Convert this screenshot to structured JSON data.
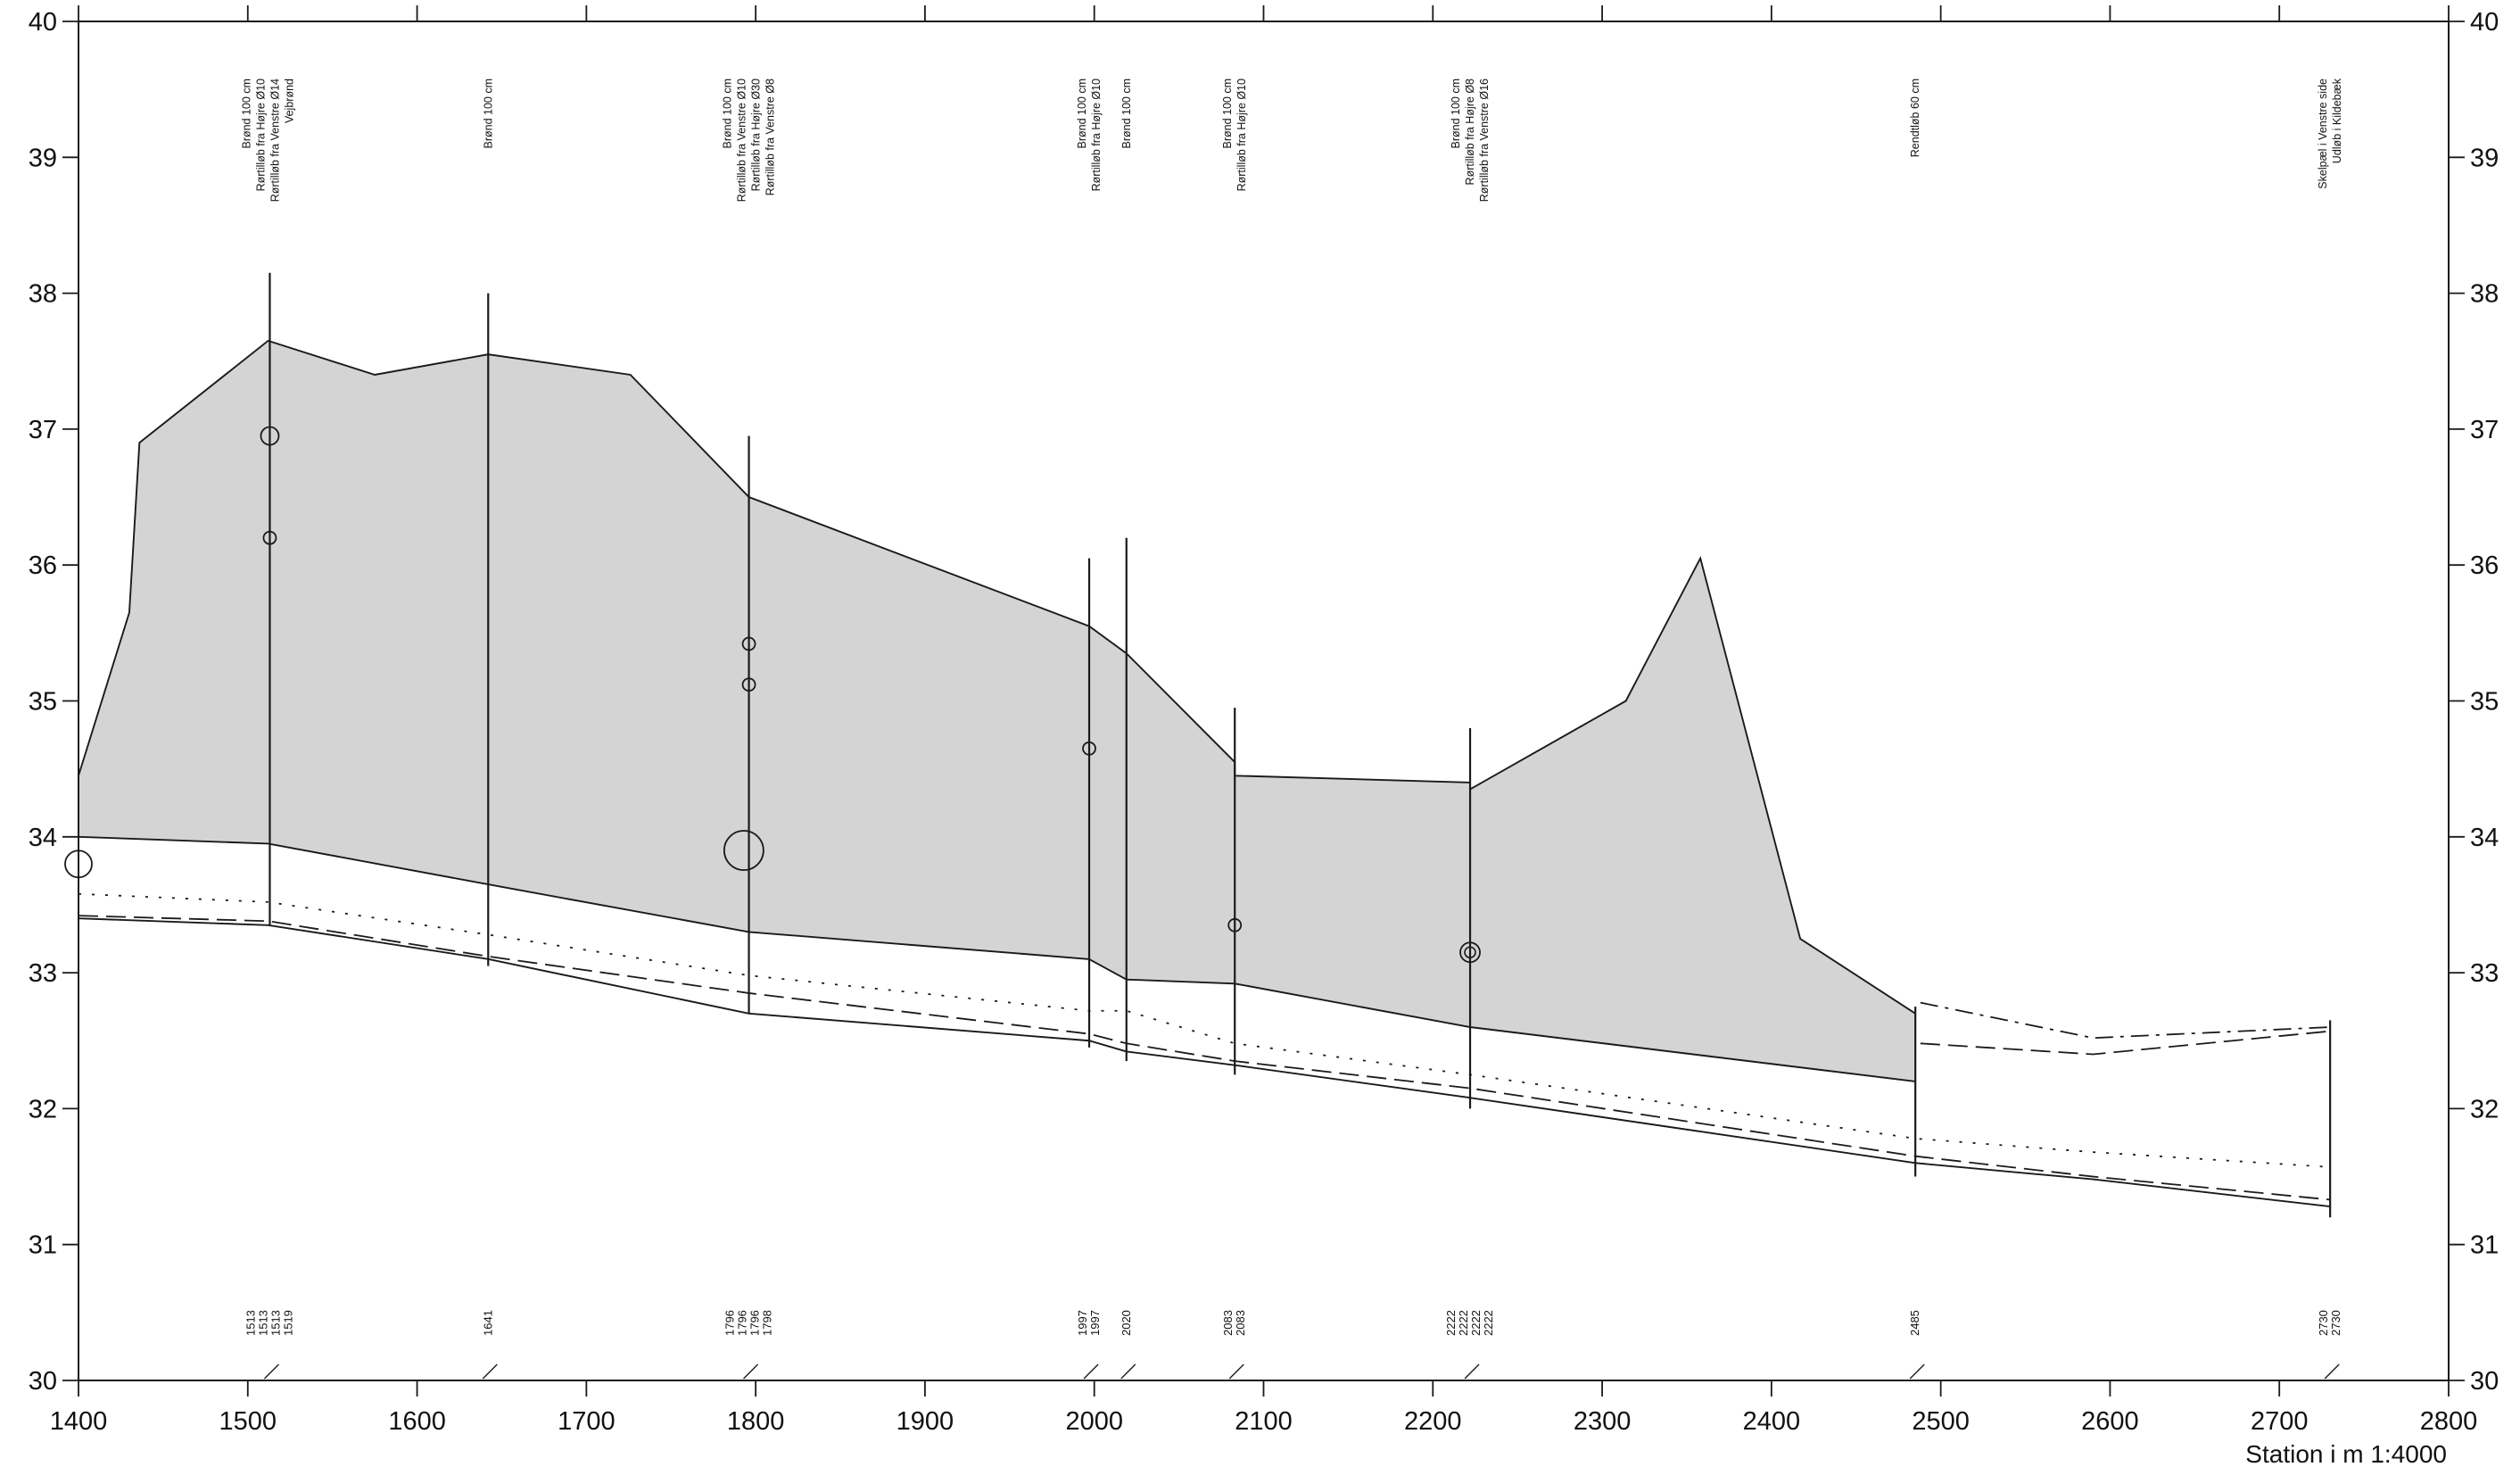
{
  "chart_data": {
    "type": "area",
    "xlabel": "Station i m  1:4000",
    "ylabel": "",
    "xlim": [
      1400,
      2800
    ],
    "ylim": [
      30,
      40
    ],
    "x_ticks": [
      1400,
      1500,
      1600,
      1700,
      1800,
      1900,
      2000,
      2100,
      2200,
      2300,
      2400,
      2500,
      2600,
      2700,
      2800
    ],
    "y_ticks": [
      30,
      31,
      32,
      33,
      34,
      35,
      36,
      37,
      38,
      39,
      40
    ],
    "x_tick_labels": [
      "1400",
      "1500",
      "1600",
      "1700",
      "1800",
      "1900",
      "2000",
      "2100",
      "2200",
      "2300",
      "2400",
      "2500",
      "2600",
      "2700",
      "2800"
    ],
    "y_tick_labels": [
      "30",
      "31",
      "32",
      "33",
      "34",
      "35",
      "36",
      "37",
      "38",
      "39",
      "40"
    ],
    "grid": false,
    "colors": {
      "fill": "#d4d4d4",
      "line": "#1a1a1a"
    },
    "series": [
      {
        "style": "solid",
        "x": [
          1400,
          1430,
          1436,
          1512,
          1575,
          1642,
          1726,
          1796,
          1997,
          2019,
          2083,
          2083,
          2222,
          2222,
          2314,
          2358,
          2417,
          2485
        ],
        "y": [
          34.45,
          35.65,
          36.9,
          37.65,
          37.4,
          37.55,
          37.4,
          36.5,
          35.55,
          35.35,
          34.55,
          34.45,
          34.4,
          34.35,
          35.0,
          36.05,
          33.25,
          32.7
        ]
      },
      {
        "style": "solid",
        "x": [
          1400,
          1512,
          1642,
          1796,
          1997,
          2019,
          2083,
          2222,
          2485
        ],
        "y": [
          34.0,
          33.95,
          33.65,
          33.3,
          33.1,
          32.95,
          32.92,
          32.6,
          32.2
        ]
      },
      {
        "style": "dotted",
        "x": [
          1400,
          1512,
          1642,
          1796,
          1997,
          2019,
          2083,
          2222,
          2485,
          2590,
          2730
        ],
        "y": [
          33.58,
          33.52,
          33.28,
          32.98,
          32.72,
          32.72,
          32.48,
          32.25,
          31.78,
          31.68,
          31.57
        ]
      },
      {
        "style": "dashed",
        "x": [
          1400,
          1512,
          1642,
          1796,
          1997,
          2019,
          2083,
          2222,
          2485,
          2590,
          2730
        ],
        "y": [
          33.42,
          33.38,
          33.12,
          32.85,
          32.55,
          32.48,
          32.35,
          32.15,
          31.65,
          31.5,
          31.33
        ]
      },
      {
        "style": "solid",
        "x": [
          1400,
          1512,
          1642,
          1796,
          1997,
          2019,
          2083,
          2222,
          2485,
          2590,
          2730
        ],
        "y": [
          33.4,
          33.35,
          33.1,
          32.7,
          32.5,
          32.42,
          32.32,
          32.08,
          31.6,
          31.48,
          31.28
        ]
      },
      {
        "style": "dashdot",
        "x": [
          2488,
          2590,
          2730
        ],
        "y": [
          32.78,
          32.52,
          32.6
        ]
      },
      {
        "style": "dashed",
        "x": [
          2488,
          2590,
          2730
        ],
        "y": [
          32.48,
          32.4,
          32.57
        ]
      }
    ],
    "wells": [
      {
        "x": 1513,
        "top": 38.15,
        "bottom": 33.35
      },
      {
        "x": 1642,
        "top": 38.0,
        "bottom": 33.05
      },
      {
        "x": 1796,
        "top": 36.95,
        "bottom": 32.7
      },
      {
        "x": 1997,
        "top": 36.05,
        "bottom": 32.45
      },
      {
        "x": 2019,
        "top": 36.2,
        "bottom": 32.35
      },
      {
        "x": 2083,
        "top": 34.95,
        "bottom": 32.25
      },
      {
        "x": 2222,
        "top": 34.8,
        "bottom": 32.0
      },
      {
        "x": 2485,
        "top": 32.75,
        "bottom": 31.5
      },
      {
        "x": 2730,
        "top": 32.65,
        "bottom": 31.2
      }
    ],
    "pipe_markers": [
      {
        "x": 1513,
        "y": 36.95,
        "size": "small"
      },
      {
        "x": 1513,
        "y": 36.2,
        "size": "tiny"
      },
      {
        "x": 1796,
        "y": 35.42,
        "size": "tiny"
      },
      {
        "x": 1796,
        "y": 35.12,
        "size": "tiny"
      },
      {
        "x": 1793,
        "y": 33.9,
        "size": "large"
      },
      {
        "x": 1997,
        "y": 34.65,
        "size": "tiny"
      },
      {
        "x": 2083,
        "y": 33.35,
        "size": "tiny"
      },
      {
        "x": 2222,
        "y": 33.15,
        "size": "double"
      },
      {
        "x": 1400,
        "y": 33.8,
        "size": "edge"
      }
    ],
    "annotations": [
      {
        "x": 1512,
        "lines": [
          "Brønd 100 cm",
          "Rørtilløb fra Højre Ø10",
          "Rørtilløb fra Venstre Ø14",
          "Vejbrønd"
        ]
      },
      {
        "x": 1642,
        "lines": [
          "Brønd 100 cm"
        ]
      },
      {
        "x": 1796,
        "lines": [
          "Brønd 100 cm",
          "Rørtilløb fra Venstre Ø10",
          "Rørtilløb fra Højre Ø30",
          "Rørtilløb fra Venstre Ø8"
        ]
      },
      {
        "x": 1997,
        "lines": [
          "Brønd 100 cm",
          "Rørtilløb fra Højre Ø10"
        ]
      },
      {
        "x": 2019,
        "lines": [
          "Brønd 100 cm"
        ]
      },
      {
        "x": 2083,
        "lines": [
          "Brønd 100 cm",
          "Rørtilløb fra Højre Ø10"
        ]
      },
      {
        "x": 2222,
        "lines": [
          "Brønd 100 cm",
          "Rørtilløb fra Højre Ø8",
          "Rørtilløb fra Venstre Ø16"
        ]
      },
      {
        "x": 2485,
        "lines": [
          "Rendtløb 60 cm"
        ]
      },
      {
        "x": 2730,
        "lines": [
          "Skelpæl i Venstre side",
          "Udløb i Kildebæk"
        ]
      }
    ],
    "station_labels": [
      {
        "x": 1513,
        "lines": [
          "1513",
          "1513",
          "1513",
          "1519"
        ]
      },
      {
        "x": 1642,
        "lines": [
          "1641"
        ]
      },
      {
        "x": 1796,
        "lines": [
          "1796",
          "1796",
          "1796",
          "1798"
        ]
      },
      {
        "x": 1997,
        "lines": [
          "1997",
          "1997"
        ]
      },
      {
        "x": 2019,
        "lines": [
          "2020"
        ]
      },
      {
        "x": 2083,
        "lines": [
          "2083",
          "2083"
        ]
      },
      {
        "x": 2222,
        "lines": [
          "2222",
          "2222",
          "2222",
          "2222"
        ]
      },
      {
        "x": 2485,
        "lines": [
          "2485"
        ]
      },
      {
        "x": 2730,
        "lines": [
          "2730",
          "2730"
        ]
      }
    ]
  }
}
